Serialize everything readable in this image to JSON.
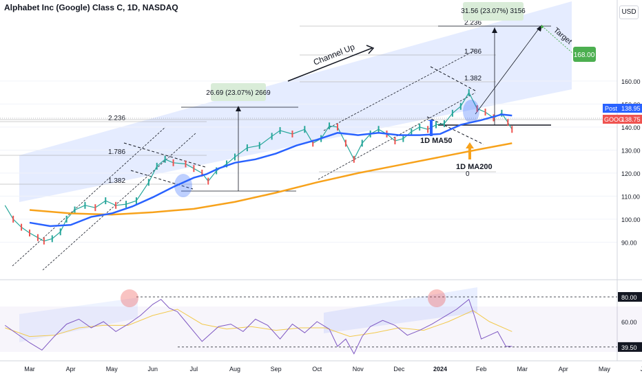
{
  "header": {
    "title": "Alphabet Inc (Google) Class C, 1D, NASDAQ",
    "currency": "USD"
  },
  "chart_data": [
    {
      "type": "line",
      "panel": "price",
      "x": [
        "Mar",
        "Apr",
        "May",
        "Jun",
        "Jul",
        "Aug",
        "Sep",
        "Oct",
        "Nov",
        "Dec",
        "2024",
        "Feb",
        "Mar",
        "Apr",
        "May",
        "Jun"
      ],
      "x_tick_labels": [
        "Mar",
        "Apr",
        "May",
        "Jun",
        "Jul",
        "Aug",
        "Sep",
        "Oct",
        "Nov",
        "Dec",
        "2024",
        "Feb",
        "Mar",
        "Apr",
        "May",
        "Jun"
      ],
      "y_tick_labels": [
        "90.00",
        "100.00",
        "110.00",
        "120.00",
        "130.00",
        "140.00",
        "150.00",
        "160.00"
      ],
      "y_ticks": [
        90,
        100,
        110,
        120,
        130,
        140,
        150,
        160
      ],
      "ylim": [
        85.5,
        173
      ],
      "series": [
        {
          "name": "1D MA50",
          "color": "#2962ff",
          "points": [
            [
              0.0,
              98.5
            ],
            [
              0.5,
              97
            ],
            [
              1.0,
              97.5
            ],
            [
              1.5,
              101
            ],
            [
              2.0,
              102.5
            ],
            [
              2.5,
              105.5
            ],
            [
              3.0,
              109.5
            ],
            [
              3.5,
              114
            ],
            [
              4.0,
              118
            ],
            [
              4.3,
              119.5
            ],
            [
              4.6,
              122
            ],
            [
              5.0,
              124.5
            ],
            [
              5.5,
              126
            ],
            [
              6.0,
              128.5
            ],
            [
              6.5,
              132
            ],
            [
              7.0,
              134.5
            ],
            [
              7.5,
              137.5
            ],
            [
              8.0,
              136.5
            ],
            [
              8.5,
              137.5
            ],
            [
              9.0,
              136.5
            ],
            [
              9.5,
              136.5
            ],
            [
              10.0,
              137
            ],
            [
              10.5,
              141
            ],
            [
              11.0,
              143
            ],
            [
              11.5,
              145.5
            ],
            [
              11.75,
              145
            ]
          ]
        },
        {
          "name": "1D MA200",
          "color": "#f7a21b",
          "points": [
            [
              0.0,
              104
            ],
            [
              1.0,
              102.5
            ],
            [
              2.0,
              102
            ],
            [
              3.0,
              103
            ],
            [
              4.0,
              104.5
            ],
            [
              5.0,
              107.5
            ],
            [
              6.0,
              111.5
            ],
            [
              7.0,
              116
            ],
            [
              8.0,
              120
            ],
            [
              9.0,
              123.5
            ],
            [
              10.0,
              127
            ],
            [
              11.0,
              130.5
            ],
            [
              11.75,
              133
            ]
          ]
        },
        {
          "name": "close",
          "color": "#26a69a",
          "points": [
            [
              -0.6,
              106
            ],
            [
              -0.4,
              100
            ],
            [
              -0.2,
              96.5
            ],
            [
              0.0,
              94
            ],
            [
              0.2,
              92
            ],
            [
              0.35,
              90.5
            ],
            [
              0.55,
              91.5
            ],
            [
              0.75,
              94.5
            ],
            [
              0.9,
              100
            ],
            [
              1.1,
              104
            ],
            [
              1.35,
              106
            ],
            [
              1.6,
              105
            ],
            [
              1.85,
              108
            ],
            [
              2.1,
              106
            ],
            [
              2.35,
              106.5
            ],
            [
              2.6,
              108
            ],
            [
              2.9,
              116
            ],
            [
              3.1,
              123
            ],
            [
              3.3,
              126
            ],
            [
              3.5,
              124.5
            ],
            [
              3.8,
              124
            ],
            [
              4.0,
              122
            ],
            [
              4.2,
              120
            ],
            [
              4.35,
              116.5
            ],
            [
              4.55,
              121
            ],
            [
              4.8,
              124
            ],
            [
              5.0,
              127
            ],
            [
              5.3,
              131
            ],
            [
              5.6,
              132
            ],
            [
              5.9,
              136
            ],
            [
              6.1,
              138.5
            ],
            [
              6.4,
              137
            ],
            [
              6.7,
              139
            ],
            [
              6.9,
              133
            ],
            [
              7.1,
              135
            ],
            [
              7.3,
              140.5
            ],
            [
              7.5,
              140
            ],
            [
              7.7,
              133
            ],
            [
              7.9,
              126
            ],
            [
              8.1,
              133
            ],
            [
              8.3,
              137
            ],
            [
              8.5,
              139
            ],
            [
              8.7,
              137
            ],
            [
              8.9,
              134
            ],
            [
              9.1,
              135
            ],
            [
              9.3,
              138
            ],
            [
              9.5,
              140
            ],
            [
              9.7,
              139
            ],
            [
              9.9,
              141
            ],
            [
              10.1,
              141.5
            ],
            [
              10.3,
              146
            ],
            [
              10.5,
              149
            ],
            [
              10.7,
              155
            ],
            [
              10.9,
              148
            ],
            [
              11.1,
              146.5
            ],
            [
              11.3,
              144
            ],
            [
              11.5,
              146
            ],
            [
              11.65,
              142
            ],
            [
              11.75,
              139
            ]
          ]
        }
      ],
      "annotations": {
        "channel": "Channel Up",
        "measure_left": "26.69 (23.07%) 2669",
        "measure_right": "31.56 (23.07%) 3156",
        "target_label": "Target",
        "target_price": "168.00",
        "fib_left": [
          "2.236",
          "1.786",
          "1.382"
        ],
        "fib_right": [
          "2.236",
          "1.786",
          "1.382"
        ],
        "fib_zero": "0",
        "ma50_label": "1D MA50",
        "ma200_label": "1D MA200",
        "post_label": "Post",
        "post_price": "138.95",
        "goog_label": "GOOG",
        "goog_price": "138.75"
      }
    },
    {
      "type": "line",
      "panel": "rsi",
      "ylim": [
        30,
        90
      ],
      "series": [
        {
          "name": "RSI",
          "color": "#7e57c2",
          "points": [
            [
              -0.6,
              57
            ],
            [
              -0.3,
              50
            ],
            [
              0.0,
              43
            ],
            [
              0.3,
              37
            ],
            [
              0.6,
              48
            ],
            [
              0.9,
              58
            ],
            [
              1.2,
              62
            ],
            [
              1.5,
              55
            ],
            [
              1.8,
              60
            ],
            [
              2.1,
              52
            ],
            [
              2.4,
              58
            ],
            [
              2.7,
              65
            ],
            [
              3.0,
              74
            ],
            [
              3.2,
              78
            ],
            [
              3.4,
              71
            ],
            [
              3.6,
              68
            ],
            [
              3.8,
              60
            ],
            [
              4.0,
              52
            ],
            [
              4.2,
              44
            ],
            [
              4.4,
              50
            ],
            [
              4.6,
              56
            ],
            [
              4.9,
              58
            ],
            [
              5.2,
              52
            ],
            [
              5.5,
              62
            ],
            [
              5.8,
              57
            ],
            [
              6.1,
              46
            ],
            [
              6.4,
              58
            ],
            [
              6.7,
              51
            ],
            [
              7.0,
              60
            ],
            [
              7.3,
              54
            ],
            [
              7.5,
              40
            ],
            [
              7.7,
              46
            ],
            [
              7.9,
              34
            ],
            [
              8.1,
              48
            ],
            [
              8.3,
              56
            ],
            [
              8.6,
              61
            ],
            [
              8.9,
              57
            ],
            [
              9.2,
              49
            ],
            [
              9.5,
              53
            ],
            [
              9.8,
              58
            ],
            [
              10.1,
              64
            ],
            [
              10.4,
              70
            ],
            [
              10.7,
              78
            ],
            [
              10.85,
              63
            ],
            [
              11.0,
              46
            ],
            [
              11.2,
              49
            ],
            [
              11.4,
              52
            ],
            [
              11.6,
              40
            ],
            [
              11.75,
              40
            ]
          ]
        },
        {
          "name": "RSI-MA",
          "color": "#f2c94c",
          "points": [
            [
              -0.6,
              55
            ],
            [
              0.0,
              48
            ],
            [
              0.6,
              49
            ],
            [
              1.2,
              55
            ],
            [
              1.8,
              57
            ],
            [
              2.4,
              57
            ],
            [
              3.0,
              65
            ],
            [
              3.6,
              70
            ],
            [
              4.2,
              58
            ],
            [
              4.8,
              54
            ],
            [
              5.4,
              56
            ],
            [
              6.0,
              53
            ],
            [
              6.6,
              55
            ],
            [
              7.2,
              55
            ],
            [
              7.8,
              48
            ],
            [
              8.4,
              51
            ],
            [
              9.0,
              55
            ],
            [
              9.6,
              53
            ],
            [
              10.2,
              60
            ],
            [
              10.8,
              69
            ],
            [
              11.2,
              60
            ],
            [
              11.75,
              52
            ]
          ]
        }
      ],
      "levels": [
        80,
        39.5
      ],
      "level_labels": [
        "80.00",
        "39.50"
      ],
      "y_tick_labels": [
        "60.00"
      ],
      "y_ticks": [
        60
      ]
    }
  ]
}
